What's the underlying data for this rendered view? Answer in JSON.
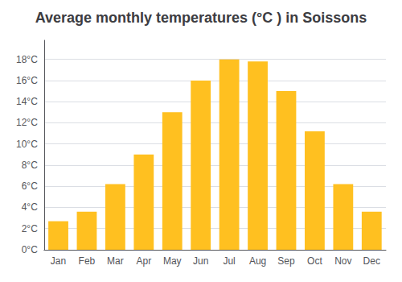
{
  "chart_data": {
    "type": "bar",
    "title": "Average monthly temperatures (°C ) in Soissons",
    "categories": [
      "Jan",
      "Feb",
      "Mar",
      "Apr",
      "May",
      "Jun",
      "Jul",
      "Aug",
      "Sep",
      "Oct",
      "Nov",
      "Dec"
    ],
    "values": [
      2.7,
      3.6,
      6.2,
      9.0,
      13.0,
      16.0,
      18.0,
      17.8,
      15.0,
      11.2,
      6.2,
      3.6
    ],
    "color": "#FFC020",
    "ylim": [
      0,
      19.8
    ],
    "yticks": [
      {
        "value": 0,
        "label": "0°C"
      },
      {
        "value": 2,
        "label": "2°C"
      },
      {
        "value": 4,
        "label": "4°C"
      },
      {
        "value": 6,
        "label": "6°C"
      },
      {
        "value": 8,
        "label": "8°C"
      },
      {
        "value": 10,
        "label": "10°C"
      },
      {
        "value": 12,
        "label": "12°C"
      },
      {
        "value": 14,
        "label": "14°C"
      },
      {
        "value": 16,
        "label": "16°C"
      },
      {
        "value": 18,
        "label": "18°C"
      }
    ],
    "grid": true
  }
}
